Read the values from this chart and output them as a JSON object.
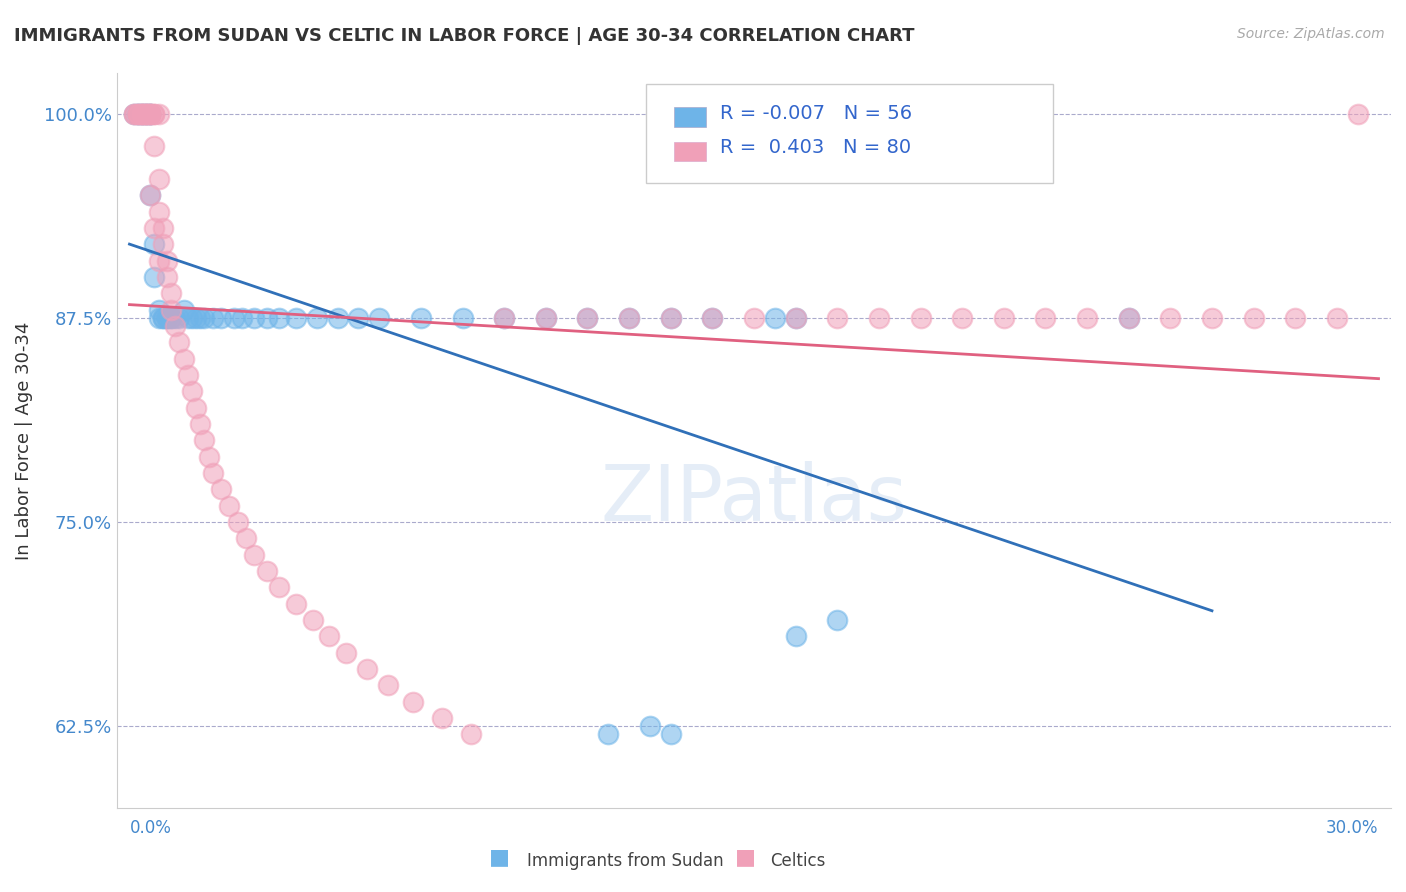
{
  "title": "IMMIGRANTS FROM SUDAN VS CELTIC IN LABOR FORCE | AGE 30-34 CORRELATION CHART",
  "source": "Source: ZipAtlas.com",
  "ylabel": "In Labor Force | Age 30-34",
  "xlim": [
    0.0,
    0.3
  ],
  "ylim": [
    0.575,
    1.025
  ],
  "yticks": [
    0.625,
    0.75,
    0.875,
    1.0
  ],
  "ytick_labels": [
    "62.5%",
    "75.0%",
    "87.5%",
    "100.0%"
  ],
  "sudan_R": -0.007,
  "sudan_N": 56,
  "celtic_R": 0.403,
  "celtic_N": 80,
  "sudan_color": "#6eb4e8",
  "celtic_color": "#f0a0b8",
  "sudan_line_color": "#3070b8",
  "celtic_line_color": "#e06080",
  "watermark": "ZIPatlas",
  "legend_labels": [
    "Immigrants from Sudan",
    "Celtics"
  ]
}
